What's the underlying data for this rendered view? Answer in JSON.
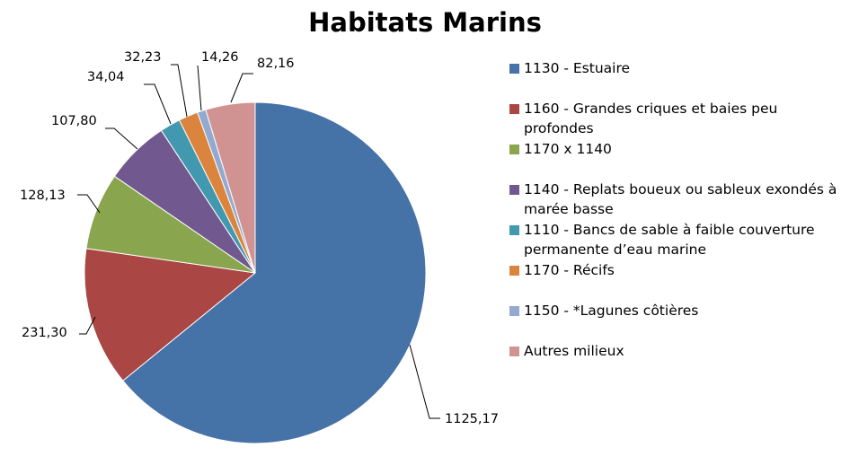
{
  "chart_data": {
    "type": "pie",
    "title": "Habitats Marins",
    "legend_position": "right",
    "slices": [
      {
        "label": "1130 - Estuaire",
        "value": 1125.17,
        "display": "1125,17",
        "color": "#4572A7"
      },
      {
        "label": "1160 - Grandes criques et baies peu profondes",
        "value": 231.3,
        "display": "231,30",
        "color": "#AA4643"
      },
      {
        "label": "1170 x 1140",
        "value": 128.13,
        "display": "128,13",
        "color": "#89A54E"
      },
      {
        "label": "1140 - Replats boueux ou sableux exondés à marée basse",
        "value": 107.8,
        "display": "107,80",
        "color": "#71588F"
      },
      {
        "label": "1110 - Bancs de sable à faible couverture permanente d’eau marine",
        "value": 34.04,
        "display": "34,04",
        "color": "#4198AF"
      },
      {
        "label": "1170 - Récifs",
        "value": 32.23,
        "display": "32,23",
        "color": "#DB843D"
      },
      {
        "label": "1150 - *Lagunes côtières",
        "value": 14.26,
        "display": "14,26",
        "color": "#93A9CF"
      },
      {
        "label": "Autres milieux",
        "value": 82.16,
        "display": "82,16",
        "color": "#D19392"
      }
    ]
  }
}
